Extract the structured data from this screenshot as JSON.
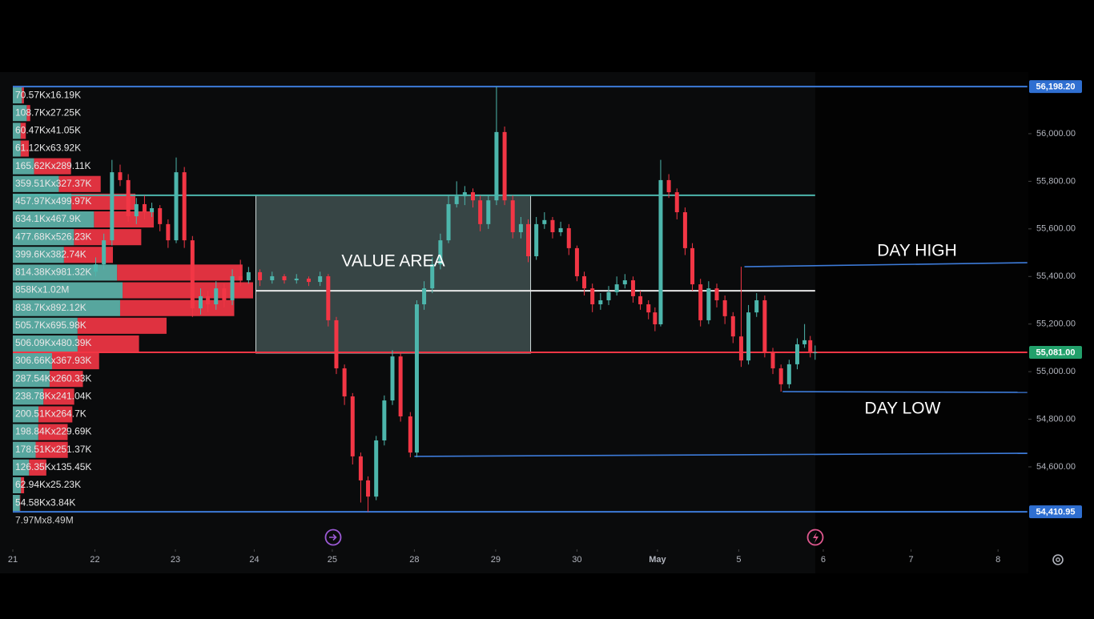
{
  "chart_data": {
    "type": "candlestick",
    "xlim": [
      0,
      12.5
    ],
    "ylim": [
      54273.5,
      56259
    ],
    "xticks": [
      {
        "value": 0,
        "label": "21"
      },
      {
        "value": 1.01,
        "label": "22"
      },
      {
        "value": 2.0,
        "label": "23"
      },
      {
        "value": 2.97,
        "label": "24"
      },
      {
        "value": 3.93,
        "label": "25"
      },
      {
        "value": 4.94,
        "label": "28"
      },
      {
        "value": 5.94,
        "label": "29"
      },
      {
        "value": 6.94,
        "label": "30"
      },
      {
        "value": 7.93,
        "label": "May"
      },
      {
        "value": 8.93,
        "label": "5"
      },
      {
        "value": 9.97,
        "label": "6"
      },
      {
        "value": 11.05,
        "label": "7"
      },
      {
        "value": 12.12,
        "label": "8"
      }
    ],
    "yticks": [
      {
        "value": 54600,
        "label": "54,600.00"
      },
      {
        "value": 54800,
        "label": "54,800.00"
      },
      {
        "value": 55000,
        "label": "55,000.00"
      },
      {
        "value": 55200,
        "label": "55,200.00"
      },
      {
        "value": 55400,
        "label": "55,400.00"
      },
      {
        "value": 55600,
        "label": "55,600.00"
      },
      {
        "value": 55800,
        "label": "55,800.00"
      },
      {
        "value": 56000,
        "label": "56,000.00"
      }
    ],
    "up_color": "#4db6ac",
    "down_color": "#f23645",
    "x": [
      1.02,
      1.12,
      1.22,
      1.32,
      1.42,
      1.52,
      1.62,
      1.71,
      1.81,
      1.91,
      2.01,
      2.11,
      2.21,
      2.31,
      2.4,
      2.5,
      2.6,
      2.7,
      2.8,
      2.9,
      3.04,
      3.19,
      3.34,
      3.49,
      3.64,
      3.78,
      3.88,
      3.98,
      4.08,
      4.18,
      4.28,
      4.37,
      4.47,
      4.57,
      4.67,
      4.77,
      4.89,
      4.97,
      5.06,
      5.16,
      5.26,
      5.36,
      5.46,
      5.56,
      5.66,
      5.75,
      5.85,
      5.95,
      6.05,
      6.15,
      6.25,
      6.34,
      6.44,
      6.54,
      6.64,
      6.74,
      6.84,
      6.94,
      7.03,
      7.13,
      7.23,
      7.33,
      7.43,
      7.53,
      7.63,
      7.72,
      7.82,
      7.9,
      7.97,
      8.07,
      8.17,
      8.27,
      8.36,
      8.46,
      8.56,
      8.66,
      8.76,
      8.86,
      8.96,
      9.05,
      9.15,
      9.25,
      9.35,
      9.45,
      9.55,
      9.65,
      9.74,
      9.81,
      9.87
    ],
    "open": [
      55420,
      55451,
      55552,
      55838,
      55805,
      55653,
      55704,
      55670,
      55687,
      55620,
      55552,
      55838,
      55552,
      55266,
      55317,
      55283,
      55350,
      55300,
      55401,
      55384,
      55418,
      55384,
      55401,
      55384,
      55391,
      55377,
      55401,
      55216,
      55014,
      54896,
      54644,
      54543,
      54475,
      54711,
      54879,
      55064,
      54812,
      54660,
      55283,
      55350,
      55451,
      55552,
      55704,
      55737,
      55754,
      55720,
      55620,
      55720,
      56007,
      55720,
      55586,
      55620,
      55485,
      55620,
      55637,
      55586,
      55603,
      55519,
      55401,
      55350,
      55283,
      55300,
      55334,
      55367,
      55384,
      55317,
      55283,
      55249,
      55199,
      55805,
      55754,
      55670,
      55519,
      55367,
      55216,
      55350,
      55300,
      55233,
      55148,
      55047,
      55249,
      55300,
      55081,
      55014,
      54947,
      55031,
      55115,
      55132,
      55081
    ],
    "high": [
      55480,
      55580,
      55890,
      55870,
      55830,
      55730,
      55740,
      55710,
      55700,
      55640,
      55900,
      55860,
      55570,
      55350,
      55340,
      55380,
      55370,
      55430,
      55470,
      55440,
      55430,
      55420,
      55410,
      55410,
      55400,
      55420,
      55410,
      55230,
      55030,
      54910,
      54660,
      54560,
      54730,
      54900,
      55090,
      55080,
      54830,
      55300,
      55380,
      55480,
      55580,
      55740,
      55800,
      55780,
      55770,
      55740,
      55740,
      56198.2,
      56030,
      55740,
      55650,
      55640,
      55650,
      55670,
      55650,
      55630,
      55620,
      55530,
      55420,
      55370,
      55330,
      55360,
      55400,
      55410,
      55400,
      55340,
      55300,
      55270,
      55890,
      55830,
      55770,
      55690,
      55540,
      55390,
      55380,
      55370,
      55320,
      55250,
      55441,
      55280,
      55330,
      55320,
      55100,
      55030,
      55050,
      55140,
      55200,
      55150,
      55110
    ],
    "low": [
      55400,
      55430,
      55530,
      55780,
      55630,
      55620,
      55640,
      55650,
      55590,
      55520,
      55540,
      55520,
      55230,
      55240,
      55250,
      55260,
      55270,
      55280,
      55360,
      55370,
      55360,
      55370,
      55370,
      55370,
      55360,
      55360,
      55190,
      54990,
      54860,
      54610,
      54450,
      54410.95,
      54460,
      54690,
      54860,
      54790,
      54640,
      54640,
      55260,
      55330,
      55430,
      55540,
      55690,
      55700,
      55690,
      55590,
      55600,
      55700,
      55700,
      55560,
      55560,
      55460,
      55470,
      55600,
      55560,
      55570,
      55490,
      55380,
      55320,
      55250,
      55260,
      55280,
      55320,
      55350,
      55290,
      55260,
      55220,
      55170,
      55190,
      55730,
      55640,
      55490,
      55340,
      55190,
      55200,
      55270,
      55200,
      55120,
      55020,
      55030,
      55230,
      55060,
      54990,
      54916,
      54930,
      55010,
      55100,
      55060,
      55050
    ],
    "close": [
      55451,
      55552,
      55838,
      55805,
      55653,
      55704,
      55670,
      55687,
      55620,
      55552,
      55838,
      55552,
      55266,
      55317,
      55283,
      55350,
      55300,
      55401,
      55384,
      55418,
      55384,
      55401,
      55384,
      55391,
      55377,
      55401,
      55216,
      55014,
      54896,
      54644,
      54543,
      54475,
      54711,
      54879,
      55064,
      54812,
      54660,
      55283,
      55350,
      55451,
      55552,
      55704,
      55737,
      55754,
      55720,
      55620,
      55720,
      56007,
      55720,
      55586,
      55620,
      55485,
      55620,
      55637,
      55586,
      55603,
      55519,
      55401,
      55350,
      55283,
      55300,
      55334,
      55367,
      55384,
      55317,
      55283,
      55249,
      55199,
      55805,
      55754,
      55670,
      55519,
      55367,
      55216,
      55350,
      55300,
      55233,
      55148,
      55047,
      55249,
      55300,
      55081,
      55014,
      54947,
      55031,
      55115,
      55132,
      55081,
      55081
    ],
    "volume_profile": {
      "buy_color": "#5fb7ae",
      "sell_color": "#f23645",
      "rows": [
        {
          "label": "70.57Kx16.19K",
          "buy": 70570,
          "sell": 16190
        },
        {
          "label": "108.7Kx27.25K",
          "buy": 108700,
          "sell": 27250
        },
        {
          "label": "60.47Kx41.05K",
          "buy": 60470,
          "sell": 41050
        },
        {
          "label": "61.12Kx63.92K",
          "buy": 61120,
          "sell": 63920
        },
        {
          "label": "165.62Kx289.11K",
          "buy": 165620,
          "sell": 289110
        },
        {
          "label": "359.51Kx327.37K",
          "buy": 359510,
          "sell": 327370
        },
        {
          "label": "457.97Kx499.97K",
          "buy": 457970,
          "sell": 499970
        },
        {
          "label": "634.1Kx467.9K",
          "buy": 634100,
          "sell": 467900
        },
        {
          "label": "477.68Kx526.23K",
          "buy": 477680,
          "sell": 526230
        },
        {
          "label": "399.6Kx382.74K",
          "buy": 399600,
          "sell": 382740
        },
        {
          "label": "814.38Kx981.32K",
          "buy": 814380,
          "sell": 981320
        },
        {
          "label": "858Kx1.02M",
          "buy": 858000,
          "sell": 1020000
        },
        {
          "label": "838.7Kx892.12K",
          "buy": 838700,
          "sell": 892120
        },
        {
          "label": "505.7Kx695.98K",
          "buy": 505700,
          "sell": 695980
        },
        {
          "label": "506.09Kx480.39K",
          "buy": 506090,
          "sell": 480390
        },
        {
          "label": "306.66Kx367.93K",
          "buy": 306660,
          "sell": 367930
        },
        {
          "label": "287.54Kx260.33K",
          "buy": 287540,
          "sell": 260330
        },
        {
          "label": "238.78Kx241.04K",
          "buy": 238780,
          "sell": 241040
        },
        {
          "label": "200.51Kx264.7K",
          "buy": 200510,
          "sell": 264700
        },
        {
          "label": "198.84Kx229.69K",
          "buy": 198840,
          "sell": 229690
        },
        {
          "label": "178.51Kx251.37K",
          "buy": 178510,
          "sell": 251370
        },
        {
          "label": "126.35Kx135.45K",
          "buy": 126350,
          "sell": 135450
        },
        {
          "label": "62.94Kx25.23K",
          "buy": 62940,
          "sell": 25230
        },
        {
          "label": "54.58Kx3.84K",
          "buy": 54580,
          "sell": 3840
        }
      ],
      "total": "7.97Mx8.49M"
    },
    "levels": [
      {
        "price": 56198.2,
        "color": "#3d7bd9",
        "from": 0,
        "to": 12.48
      },
      {
        "price": 54410.95,
        "color": "#3d7bd9",
        "from": 0,
        "to": 12.48
      },
      {
        "price": 55081,
        "color": "#f23645",
        "from": 0,
        "to": 12.48
      },
      {
        "price": 55741,
        "color": "#4db6ac",
        "from": 0,
        "to": 9.87
      },
      {
        "price": 55340,
        "color": "#e6e6e6",
        "from": 2.99,
        "to": 9.87
      }
    ],
    "value_area": {
      "label": "VALUE AREA",
      "top": 55741,
      "bottom": 55078,
      "from": 2.99,
      "to": 6.37
    },
    "trend_lines": [
      {
        "label": "DAY HIGH",
        "x": [
          9.0,
          12.48
        ],
        "y": [
          55441,
          55458
        ]
      },
      {
        "label": "DAY LOW",
        "x": [
          9.47,
          12.48
        ],
        "y": [
          54916,
          54913
        ]
      },
      {
        "x": [
          4.94,
          12.48
        ],
        "y": [
          54644,
          54657
        ]
      }
    ],
    "price_tags": [
      {
        "value": 56198.2,
        "label": "56,198.20",
        "color": "#2f6fd1"
      },
      {
        "value": 55081,
        "label": "55,081.00",
        "color": "#22a06b"
      },
      {
        "value": 54410.95,
        "label": "54,410.95",
        "color": "#2f6fd1"
      }
    ]
  }
}
